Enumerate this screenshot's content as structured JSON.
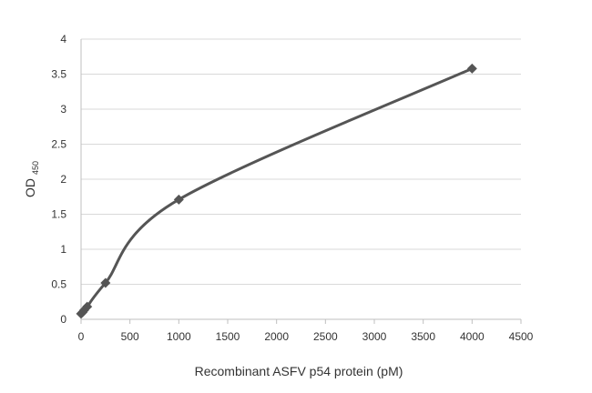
{
  "chart_data": {
    "type": "scatter",
    "title": "",
    "xlabel": "Recombinant ASFV p54 protein (pM)",
    "ylabel": "OD",
    "ylabel_subscript": "450",
    "xlim": [
      0,
      4500
    ],
    "ylim": [
      0,
      4
    ],
    "x_ticks": [
      0,
      500,
      1000,
      1500,
      2000,
      2500,
      3000,
      3500,
      4000,
      4500
    ],
    "y_ticks": [
      "0",
      "0.5",
      "1",
      "1.5",
      "2",
      "2.5",
      "3",
      "3.5",
      "4"
    ],
    "grid": true,
    "marker": "diamond",
    "trendline": "smooth",
    "series": [
      {
        "x": [
          0,
          15.6,
          31.25,
          62.5,
          250,
          1000,
          4000
        ],
        "y": [
          0.08,
          0.1,
          0.13,
          0.18,
          0.52,
          1.71,
          3.58
        ]
      }
    ],
    "colors": {
      "series": "#555555",
      "grid": "#d9d9d9",
      "axis": "#bfbfbf",
      "text": "#333333"
    }
  }
}
